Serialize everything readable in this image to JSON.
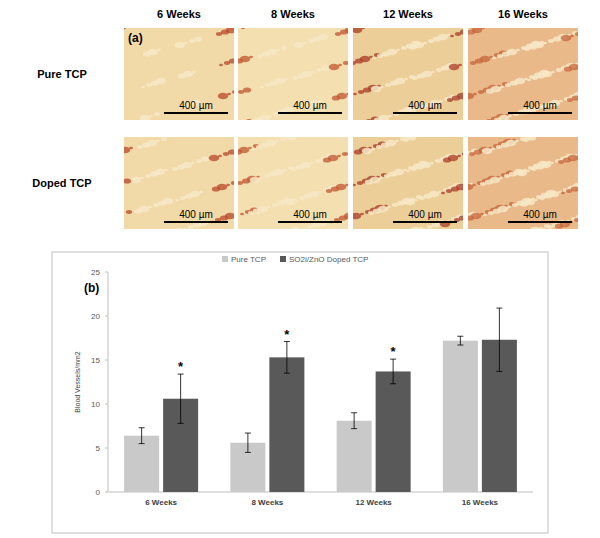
{
  "panel_a": {
    "label": "(a)",
    "columns": [
      "6 Weeks",
      "8 Weeks",
      "12 Weeks",
      "16 Weeks"
    ],
    "rows": [
      "Pure TCP",
      "Doped TCP"
    ],
    "scale_bar": "400 µm"
  },
  "chart_data": {
    "type": "bar",
    "annotation": "(b)",
    "y_label": "Blood Vessels/mm2",
    "categories": [
      "6 Weeks",
      "8 Weeks",
      "12 Weeks",
      "16 Weeks"
    ],
    "series": [
      {
        "name": "Pure TCP",
        "color": "#c9c9c9",
        "values": [
          6.4,
          5.6,
          8.1,
          17.2
        ],
        "errors": [
          0.9,
          1.1,
          0.9,
          0.5
        ]
      },
      {
        "name": "SO2i/ZnO Doped TCP",
        "color": "#595959",
        "values": [
          10.6,
          15.3,
          13.7,
          17.3
        ],
        "errors": [
          2.8,
          1.8,
          1.4,
          3.6
        ],
        "significance": [
          "*",
          "*",
          "*",
          null
        ]
      }
    ],
    "ylim": [
      0,
      25
    ],
    "yticks": [
      0,
      5,
      10,
      15,
      20,
      25
    ],
    "grid": false,
    "legend": "top"
  }
}
